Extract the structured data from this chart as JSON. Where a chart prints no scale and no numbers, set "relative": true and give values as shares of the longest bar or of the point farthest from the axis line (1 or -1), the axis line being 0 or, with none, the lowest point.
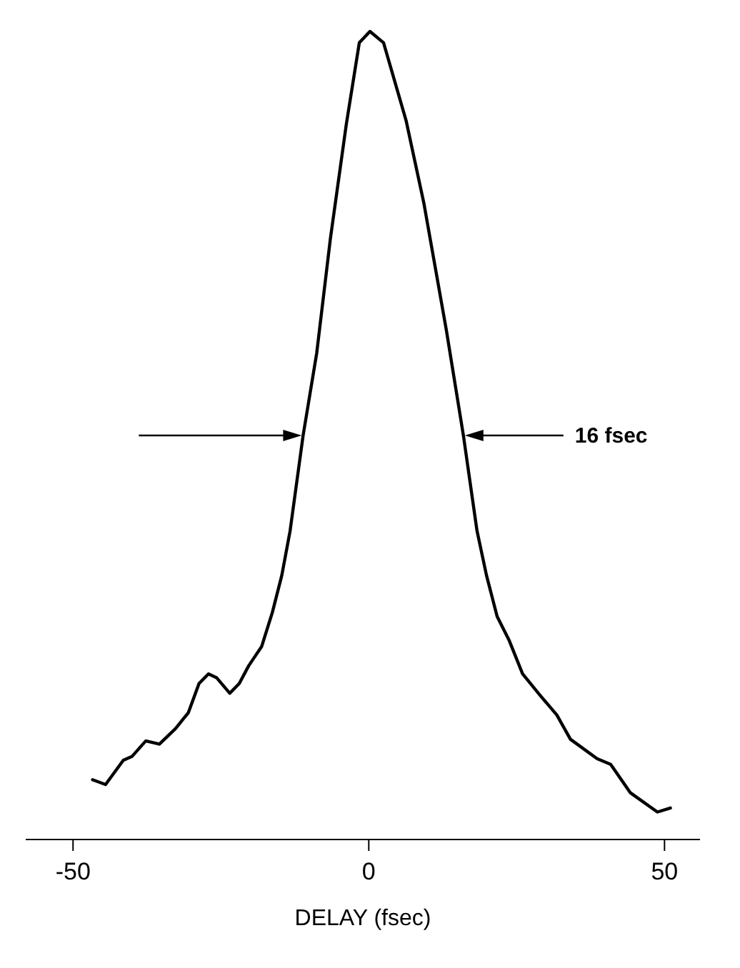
{
  "chart_data": {
    "type": "line",
    "relative": true,
    "xlabel": "DELAY (fsec)",
    "xlim": [
      -58,
      56
    ],
    "xticks": [
      -50,
      0,
      50
    ],
    "color": "#000000",
    "marker": "none",
    "x": [
      -46.7,
      -44.5,
      -41.5,
      -40,
      -37.7,
      -35.4,
      -32.7,
      -30.5,
      -28.7,
      -27.1,
      -25.7,
      -23.5,
      -21.9,
      -20.3,
      -18.1,
      -16.3,
      -14.7,
      -13.3,
      -11.1,
      -8.8,
      -6.5,
      -3.8,
      -1.6,
      0.2,
      2.5,
      6.3,
      9.3,
      13.1,
      16,
      18.3,
      19.9,
      21.7,
      23.7,
      26,
      28.9,
      31.8,
      34.1,
      38.6,
      40.9,
      44.2,
      48.8,
      51
    ],
    "values": [
      0.074,
      0.068,
      0.098,
      0.103,
      0.122,
      0.118,
      0.137,
      0.157,
      0.193,
      0.205,
      0.2,
      0.181,
      0.193,
      0.215,
      0.239,
      0.281,
      0.327,
      0.382,
      0.5,
      0.602,
      0.743,
      0.885,
      0.986,
      1,
      0.986,
      0.89,
      0.788,
      0.631,
      0.5,
      0.382,
      0.327,
      0.276,
      0.247,
      0.205,
      0.179,
      0.154,
      0.124,
      0.1,
      0.093,
      0.058,
      0.034,
      0.039
    ],
    "annotations": [
      "16 fsec"
    ]
  }
}
